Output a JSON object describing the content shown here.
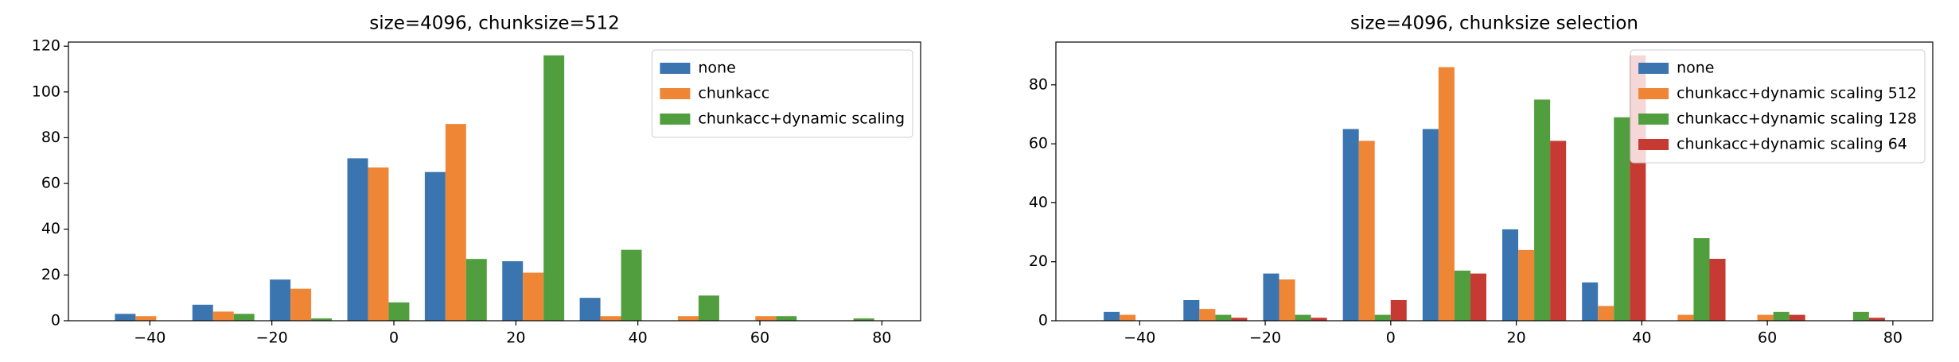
{
  "chart_data": [
    {
      "type": "histogram",
      "title": "size=4096, chunksize=512",
      "bins": [
        -47,
        -34.3,
        -21.6,
        -8.9,
        3.8,
        16.5,
        29.2,
        41.9,
        54.6,
        67.3,
        80
      ],
      "series": [
        {
          "name": "none",
          "color": "#3b75af",
          "values": [
            3,
            7,
            18,
            71,
            65,
            26,
            10,
            0,
            0,
            0
          ]
        },
        {
          "name": "chunkacc",
          "color": "#ef8636",
          "values": [
            2,
            4,
            14,
            67,
            86,
            21,
            2,
            2,
            2,
            0
          ]
        },
        {
          "name": "chunkacc+dynamic scaling",
          "color": "#519e3e",
          "values": [
            0,
            3,
            1,
            8,
            27,
            116,
            31,
            11,
            2,
            1
          ]
        }
      ],
      "xlim": [
        -53.35,
        86.35
      ],
      "xticks": [
        {
          "value": -40,
          "label": "−40"
        },
        {
          "value": -20,
          "label": "−20"
        },
        0,
        20,
        40,
        60,
        80
      ],
      "ylim": [
        0,
        121.8
      ],
      "yticks": [
        0,
        20,
        40,
        60,
        80,
        100,
        120
      ],
      "legend": "upper right"
    },
    {
      "type": "histogram",
      "title": "size=4096, chunksize selection",
      "bins": [
        -47,
        -34.3,
        -21.6,
        -8.9,
        3.8,
        16.5,
        29.2,
        41.9,
        54.6,
        67.3,
        80
      ],
      "series": [
        {
          "name": "none",
          "color": "#3b75af",
          "values": [
            3,
            7,
            16,
            65,
            65,
            31,
            13,
            0,
            0,
            0
          ]
        },
        {
          "name": "chunkacc+dynamic scaling 512",
          "color": "#ef8636",
          "values": [
            2,
            4,
            14,
            61,
            86,
            24,
            5,
            2,
            2,
            0
          ]
        },
        {
          "name": "chunkacc+dynamic scaling 128",
          "color": "#519e3e",
          "values": [
            0,
            2,
            2,
            2,
            17,
            75,
            69,
            28,
            3,
            3
          ]
        },
        {
          "name": "chunkacc+dynamic scaling 64",
          "color": "#c53a32",
          "values": [
            0,
            1,
            1,
            7,
            16,
            61,
            90,
            21,
            2,
            1
          ]
        }
      ],
      "xlim": [
        -53.35,
        86.35
      ],
      "xticks": [
        {
          "value": -40,
          "label": "−40"
        },
        {
          "value": -20,
          "label": "−20"
        },
        0,
        20,
        40,
        60,
        80
      ],
      "ylim": [
        0,
        94.5
      ],
      "yticks": [
        0,
        20,
        40,
        60,
        80
      ],
      "legend": "upper right"
    }
  ]
}
